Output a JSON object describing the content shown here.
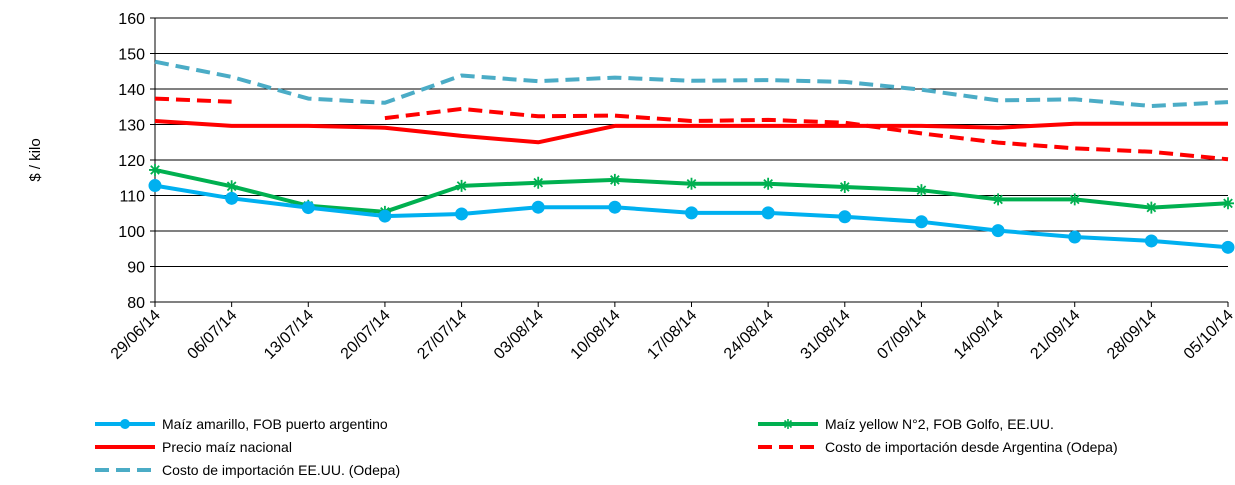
{
  "chart_data": {
    "type": "line",
    "ylabel": "$ / kilo",
    "ylim": [
      80,
      160
    ],
    "yticks": [
      80,
      90,
      100,
      110,
      120,
      130,
      140,
      150,
      160
    ],
    "grid": true,
    "legend_position": "bottom",
    "categories": [
      "29/06/14",
      "06/07/14",
      "13/07/14",
      "20/07/14",
      "27/07/14",
      "03/08/14",
      "10/08/14",
      "17/08/14",
      "24/08/14",
      "31/08/14",
      "07/09/14",
      "14/09/14",
      "21/09/14",
      "28/09/14",
      "05/10/14"
    ],
    "series": [
      {
        "name": "Maíz amarillo, FOB puerto argentino",
        "color": "#00b0f0",
        "style": "solid",
        "marker": "circle",
        "values": [
          112.8,
          109.2,
          106.6,
          104.2,
          104.8,
          106.7,
          106.7,
          105.1,
          105.1,
          104.0,
          102.6,
          100.1,
          98.3,
          97.2,
          95.4
        ]
      },
      {
        "name": "Maíz yellow N°2, FOB Golfo, EE.UU.",
        "color": "#00b050",
        "style": "solid",
        "marker": "star",
        "values": [
          117.2,
          112.6,
          107.1,
          105.4,
          112.7,
          113.6,
          114.4,
          113.3,
          113.3,
          112.4,
          111.5,
          108.9,
          108.9,
          106.6,
          107.8
        ]
      },
      {
        "name": "Precio maíz nacional",
        "color": "#ff0000",
        "style": "solid",
        "marker": "none",
        "values": [
          131.0,
          129.6,
          129.6,
          129.1,
          126.8,
          125.0,
          129.6,
          129.6,
          129.6,
          129.6,
          129.6,
          129.1,
          130.2,
          130.2,
          130.2
        ]
      },
      {
        "name": "Costo de importación desde Argentina (Odepa)",
        "color": "#ff0000",
        "style": "dashed",
        "marker": "none",
        "values": [
          137.3,
          136.4,
          null,
          131.8,
          134.4,
          132.3,
          132.5,
          131.0,
          131.3,
          130.5,
          127.5,
          124.9,
          123.3,
          122.3,
          120.2
        ]
      },
      {
        "name": "Costo de importación EE.UU. (Odepa)",
        "color": "#4bacc6",
        "style": "dashed",
        "marker": "none",
        "values": [
          147.7,
          143.4,
          137.3,
          136.1,
          143.8,
          142.2,
          143.2,
          142.3,
          142.5,
          142.0,
          139.8,
          136.8,
          137.1,
          135.2,
          136.3
        ]
      }
    ]
  }
}
